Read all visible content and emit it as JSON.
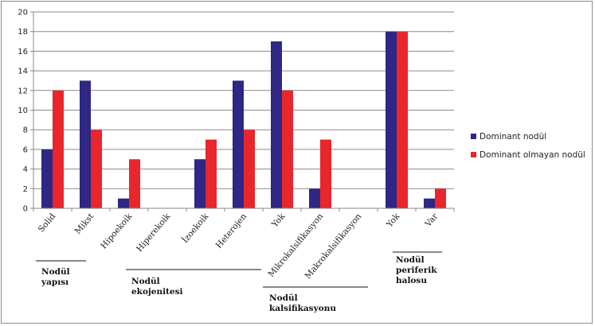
{
  "chart_data": {
    "type": "bar",
    "categories": [
      "Solid",
      "Mikst",
      "Hipoekoik",
      "Hiperekoik",
      "İzoekoik",
      "Heterojen",
      "Yok",
      "Mikrokalsifikasyon",
      "Makrokalsifikasyon",
      "Yok",
      "Var"
    ],
    "series": [
      {
        "name": "Dominant nodül",
        "color": "#2e2784",
        "values": [
          6,
          13,
          1,
          0,
          5,
          13,
          17,
          2,
          0,
          18,
          1
        ]
      },
      {
        "name": "Dominant olmayan nodül",
        "color": "#e8262b",
        "values": [
          12,
          8,
          5,
          0,
          7,
          8,
          12,
          7,
          0,
          18,
          2
        ]
      }
    ],
    "ylim": [
      0,
      20
    ],
    "yticks": [
      0,
      2,
      4,
      6,
      8,
      10,
      12,
      14,
      16,
      18,
      20
    ],
    "grid": true,
    "legend_position": "right",
    "groups": [
      {
        "lines": [
          "Nodül",
          "yapısı"
        ],
        "categories": [
          "Solid",
          "Mikst"
        ]
      },
      {
        "lines": [
          "Nodül",
          "ekojenitesi"
        ],
        "categories": [
          "Hipoekoik",
          "Hiperekoik",
          "İzoekoik",
          "Heterojen"
        ]
      },
      {
        "lines": [
          "Nodül",
          "kalsifikasyonu"
        ],
        "categories": [
          "Yok",
          "Mikrokalsifikasyon",
          "Makrokalsifikasyon"
        ]
      },
      {
        "lines": [
          "Nodül",
          "periferik",
          "halosu"
        ],
        "categories": [
          "Yok",
          "Var"
        ]
      }
    ]
  }
}
